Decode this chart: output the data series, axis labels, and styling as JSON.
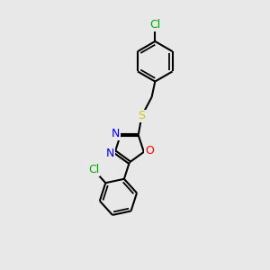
{
  "bg_color": "#e8e8e8",
  "bond_color": "#000000",
  "atom_colors": {
    "N": "#0000ff",
    "O": "#ff0000",
    "S": "#cccc00",
    "Cl_top": "#00aa00",
    "Cl_bot": "#00aa00"
  },
  "bond_width": 1.5,
  "dbo": 0.06,
  "xlim": [
    0,
    10
  ],
  "ylim": [
    0,
    12
  ]
}
